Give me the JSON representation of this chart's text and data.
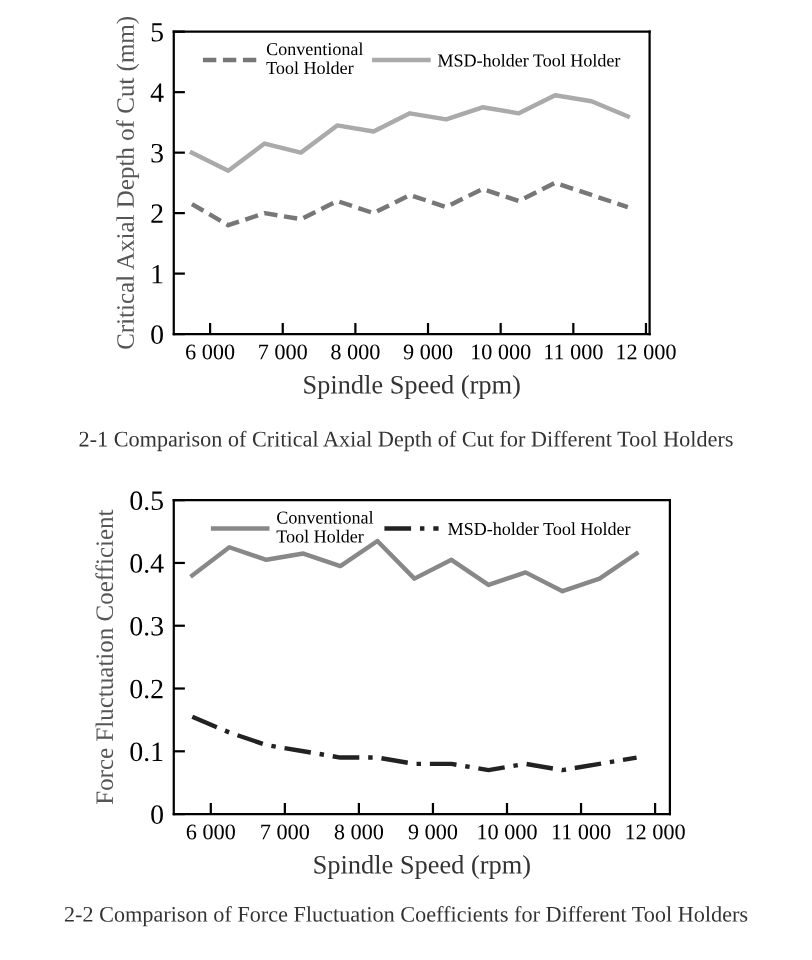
{
  "chart_data": [
    {
      "type": "line",
      "xlabel": "Spindle Speed (rpm)",
      "ylabel": "Critical Axial Depth of Cut (mm)",
      "annotations": [
        "2-1 Comparison of Critical Axial Depth of Cut for Different Tool Holders"
      ],
      "x": [
        5750,
        6250,
        6750,
        7250,
        7750,
        8250,
        8750,
        9250,
        9750,
        10250,
        10750,
        11250,
        11750
      ],
      "series": [
        {
          "name": "Conventional\nTool Holder",
          "color": "#777777",
          "line_style": "dashed",
          "values": [
            2.15,
            1.8,
            2.0,
            1.9,
            2.2,
            2.0,
            2.3,
            2.1,
            2.4,
            2.2,
            2.5,
            2.3,
            2.1
          ]
        },
        {
          "name": "MSD-holder Tool Holder",
          "color": "#aaaaaa",
          "line_style": "solid",
          "values": [
            3.0,
            2.7,
            3.15,
            3.0,
            3.45,
            3.35,
            3.65,
            3.55,
            3.75,
            3.65,
            3.95,
            3.85,
            3.6
          ]
        }
      ],
      "xlim": [
        5500,
        12050
      ],
      "ylim": [
        0,
        5
      ],
      "xticks": [
        {
          "value": 6000,
          "label": "6 000"
        },
        {
          "value": 7000,
          "label": "7 000"
        },
        {
          "value": 8000,
          "label": "8 000"
        },
        {
          "value": 9000,
          "label": "9 000"
        },
        {
          "value": 10000,
          "label": "10 000"
        },
        {
          "value": 11000,
          "label": "11 000"
        },
        {
          "value": 12000,
          "label": "12 000"
        }
      ],
      "yticks": [
        0,
        1,
        2,
        3,
        4,
        5
      ],
      "grid": false,
      "legend": "top",
      "marker": "none"
    },
    {
      "type": "line",
      "xlabel": "Spindle Speed (rpm)",
      "ylabel": "Force Fluctuation Coefficient",
      "annotations": [
        "2-2 Comparison of Force Fluctuation Coefficients for Different Tool Holders"
      ],
      "x": [
        5750,
        6250,
        6750,
        7250,
        7750,
        8250,
        8750,
        9250,
        9750,
        10250,
        10750,
        11250,
        11750
      ],
      "series": [
        {
          "name": "Conventional\nTool Holder",
          "color": "#888888",
          "line_style": "solid",
          "values": [
            0.38,
            0.425,
            0.405,
            0.415,
            0.395,
            0.435,
            0.375,
            0.405,
            0.365,
            0.385,
            0.355,
            0.375,
            0.415
          ]
        },
        {
          "name": "MSD-holder Tool Holder",
          "color": "#222222",
          "line_style": "dashdot",
          "values": [
            0.155,
            0.13,
            0.11,
            0.1,
            0.09,
            0.09,
            0.08,
            0.08,
            0.07,
            0.08,
            0.07,
            0.08,
            0.09
          ]
        }
      ],
      "xlim": [
        5500,
        12200
      ],
      "ylim": [
        0,
        0.5
      ],
      "xticks": [
        {
          "value": 6000,
          "label": "6 000"
        },
        {
          "value": 7000,
          "label": "7 000"
        },
        {
          "value": 8000,
          "label": "8 000"
        },
        {
          "value": 9000,
          "label": "9 000"
        },
        {
          "value": 10000,
          "label": "10 000"
        },
        {
          "value": 11000,
          "label": "11 000"
        },
        {
          "value": 12000,
          "label": "12 000"
        }
      ],
      "yticks": [
        0,
        0.1,
        0.2,
        0.3,
        0.4,
        0.5
      ],
      "grid": false,
      "legend": "top",
      "marker": "none"
    }
  ]
}
